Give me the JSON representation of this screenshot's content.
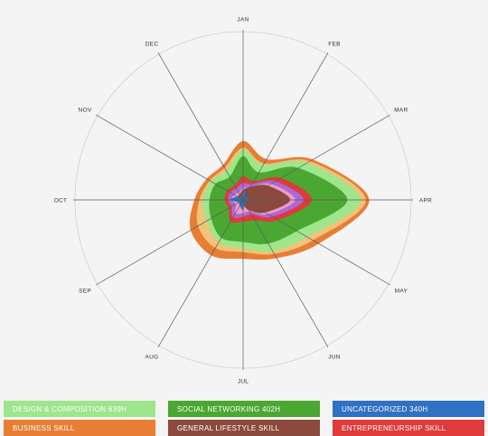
{
  "chart_data": {
    "type": "radar-area",
    "months": [
      "JAN",
      "FEB",
      "MAR",
      "APR",
      "MAY",
      "JUN",
      "JUL",
      "AUG",
      "SEP",
      "OCT",
      "NOV",
      "DEC"
    ],
    "series": [
      {
        "name": "DESIGN & COMPOSITION 639H",
        "color": "#9ee68c",
        "values": [
          0.3,
          0.24,
          0.44,
          0.7,
          0.44,
          0.35,
          0.29,
          0.29,
          0.25,
          0.24,
          0.22,
          0.2
        ]
      },
      {
        "name": "SOCIAL NETWORKING 402H",
        "color": "#4aa832",
        "values": [
          0.26,
          0.19,
          0.38,
          0.62,
          0.37,
          0.3,
          0.25,
          0.26,
          0.22,
          0.2,
          0.19,
          0.16
        ]
      },
      {
        "name": "UNCATEGORIZED 340H",
        "color": "#2f71c4",
        "values": [
          0.06,
          0.03,
          0.03,
          0.03,
          0.02,
          0.02,
          0.06,
          0.04,
          0.03,
          0.08,
          0.04,
          0.02
        ]
      },
      {
        "name": "BUSINESS SKILL",
        "color": "#e87d34",
        "values": [
          0.35,
          0.28,
          0.48,
          0.75,
          0.52,
          0.4,
          0.35,
          0.38,
          0.36,
          0.29,
          0.25,
          0.24
        ]
      },
      {
        "name": "GENERAL LIFESTYLE SKILL",
        "color": "#8b4a3c",
        "values": [
          0.06,
          0.09,
          0.17,
          0.28,
          0.15,
          0.07,
          0.03,
          0.04,
          0.03,
          0.05,
          0.04,
          0.04
        ]
      },
      {
        "name": "ENTREPRENEURSHIP SKILL",
        "color": "#e03a3a",
        "values": [
          0.14,
          0.13,
          0.26,
          0.41,
          0.24,
          0.14,
          0.13,
          0.15,
          0.1,
          0.11,
          0.11,
          0.1
        ]
      },
      {
        "name": "",
        "color": "#f0c27a",
        "values": [
          0.31,
          0.25,
          0.46,
          0.73,
          0.48,
          0.37,
          0.31,
          0.33,
          0.31,
          0.26,
          0.23,
          0.22
        ]
      },
      {
        "name": "",
        "color": "#a96ad8",
        "values": [
          0.1,
          0.11,
          0.22,
          0.36,
          0.2,
          0.1,
          0.1,
          0.12,
          0.08,
          0.09,
          0.09,
          0.08
        ]
      },
      {
        "name": "",
        "color": "#f09ac9",
        "values": [
          0.07,
          0.09,
          0.19,
          0.31,
          0.17,
          0.08,
          0.08,
          0.09,
          0.05,
          0.07,
          0.06,
          0.05
        ]
      }
    ],
    "draw_order": [
      3,
      6,
      0,
      1,
      5,
      7,
      8,
      4,
      2
    ],
    "legend_visible": [
      0,
      1,
      2,
      3,
      4,
      5
    ],
    "rmax": 1.0,
    "grid": true,
    "legend_position": "bottom"
  }
}
